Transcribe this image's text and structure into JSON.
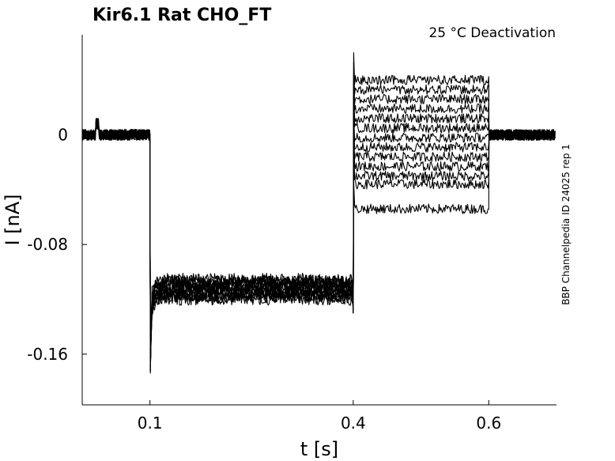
{
  "chart_data": {
    "type": "line",
    "title": "Kir6.1  Rat  CHO_FT",
    "subtitle": "25 °C  Deactivation",
    "side_note": "BBP Channelpedia ID 24025 rep 1",
    "xlabel": "t [s]",
    "ylabel": "I [nA]",
    "xlim": [
      0.0,
      0.7
    ],
    "ylim": [
      -0.197,
      0.073
    ],
    "x_ticks": [
      0.1,
      0.4,
      0.6
    ],
    "x_tick_labels": [
      "0.1",
      "0.4",
      "0.6"
    ],
    "y_ticks": [
      0,
      -0.08,
      -0.16
    ],
    "y_tick_labels": [
      "0",
      "-0.08",
      "-0.16"
    ],
    "grid": false,
    "legend": "none",
    "line_color": "#000000",
    "protocol": {
      "baseline_end": 0.1,
      "step_end": 0.4,
      "test_end": 0.6,
      "baseline_current": 0.0,
      "hyperpolarized_current": -0.112,
      "tail_currents": [
        0.04,
        0.033,
        0.026,
        0.019,
        0.012,
        0.005,
        -0.002,
        -0.009,
        -0.016,
        -0.023,
        -0.03,
        -0.036,
        -0.054
      ]
    },
    "series": [
      {
        "values": [
          0.04
        ]
      },
      {
        "values": [
          0.033
        ]
      },
      {
        "values": [
          0.026
        ]
      },
      {
        "values": [
          0.019
        ]
      },
      {
        "values": [
          0.012
        ]
      },
      {
        "values": [
          0.005
        ]
      },
      {
        "values": [
          -0.002
        ]
      },
      {
        "values": [
          -0.009
        ]
      },
      {
        "values": [
          -0.016
        ]
      },
      {
        "values": [
          -0.023
        ]
      },
      {
        "values": [
          -0.03
        ]
      },
      {
        "values": [
          -0.036
        ]
      },
      {
        "values": [
          -0.054
        ]
      }
    ]
  }
}
